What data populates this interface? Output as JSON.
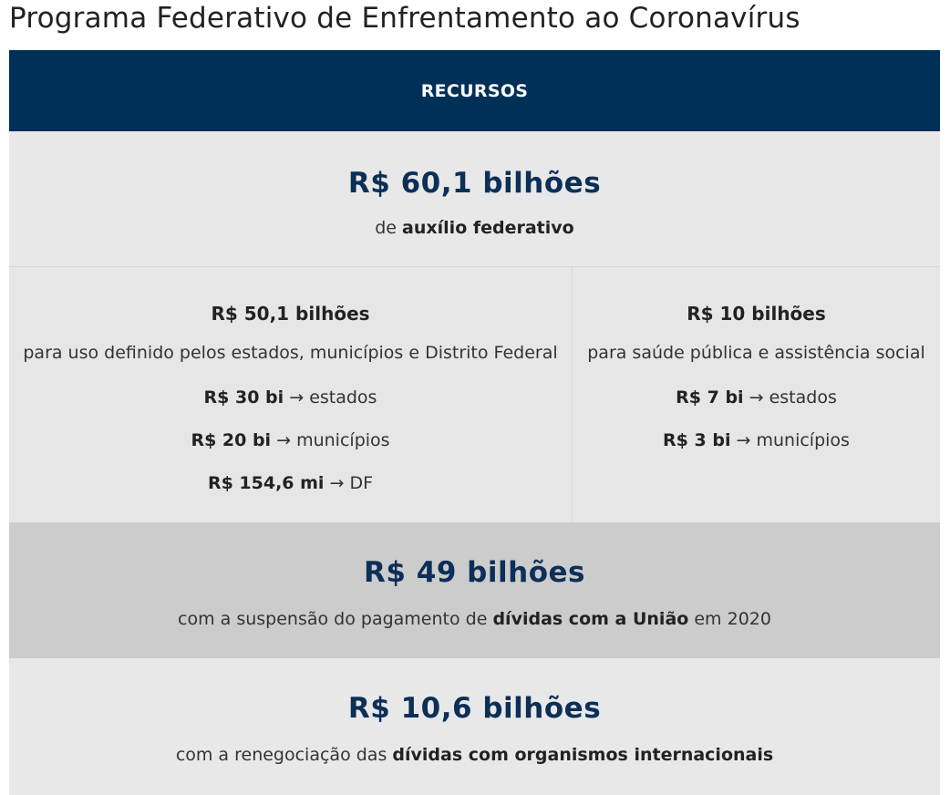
{
  "title": "Programa Federativo de Enfrentamento ao Coronavírus",
  "header": "RECURSOS",
  "auxilio": {
    "amount": "R$ 60,1 bilhões",
    "desc_prefix": "de ",
    "desc_bold": "auxílio federativo"
  },
  "uso_definido": {
    "amount": "R$ 50,1 bilhões",
    "desc": "para uso definido pelos estados, municípios e Distrito Federal",
    "items": [
      {
        "value": "R$ 30 bi",
        "arrow": "→",
        "target": "estados"
      },
      {
        "value": "R$ 20 bi",
        "arrow": "→",
        "target": "municípios"
      },
      {
        "value": "R$ 154,6 mi",
        "arrow": "→",
        "target": "DF"
      }
    ]
  },
  "saude": {
    "amount": "R$ 10 bilhões",
    "desc": "para saúde pública e assistência social",
    "items": [
      {
        "value": "R$ 7 bi",
        "arrow": "→",
        "target": "estados"
      },
      {
        "value": "R$ 3 bi",
        "arrow": "→",
        "target": "municípios"
      }
    ]
  },
  "suspensao": {
    "amount": "R$ 49 bilhões",
    "desc_prefix": "com a suspensão do pagamento de ",
    "desc_bold": "dívidas com a União",
    "desc_suffix": " em 2020"
  },
  "renegociacao": {
    "amount": "R$ 10,6 bilhões",
    "desc_prefix": "com a renegociação das ",
    "desc_bold": "dívidas com organismos internacionais"
  }
}
